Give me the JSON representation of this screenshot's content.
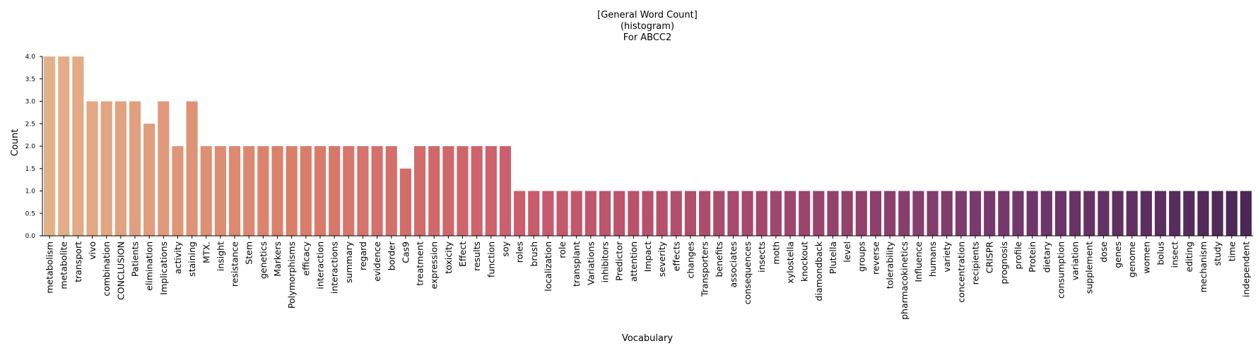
{
  "chart_data": {
    "type": "bar",
    "title": [
      "[General Word Count]",
      "(histogram)",
      "For ABCC2"
    ],
    "xlabel": "Vocabulary",
    "ylabel": "Count",
    "ylim": [
      0,
      4.0
    ],
    "yticks": [
      "0.0",
      "0.5",
      "1.0",
      "1.5",
      "2.0",
      "2.5",
      "3.0",
      "3.5",
      "4.0"
    ],
    "grid": false,
    "palette": "flare",
    "categories": [
      "metabolism",
      "metabolite",
      "transport",
      "vivo",
      "combination",
      "CONCLUSION",
      "Patients",
      "elimination",
      "Implications",
      "activity",
      "staining",
      "MTX.",
      "insight",
      "resistance",
      "Stem",
      "genetics",
      "Markers",
      "Polymorphisms",
      "efficacy",
      "interaction",
      "interactions",
      "summary",
      "regard",
      "evidence",
      "border",
      "Cas9",
      "treatment",
      "expression",
      "toxicity",
      "Effect",
      "results",
      "function",
      "soy",
      "roles",
      "brush",
      "localization",
      "role",
      "transplant",
      "Variations",
      "inhibitors",
      "Predictor",
      "attention",
      "Impact",
      "severity",
      "effects",
      "changes",
      "Transporters",
      "benefits",
      "associates",
      "consequences",
      "insects",
      "moth",
      "xylostella",
      "knockout",
      "diamondback",
      "Plutella",
      "level",
      "groups",
      "reverse",
      "tolerability",
      "pharmacokinetics",
      "Influence",
      "humans",
      "variety",
      "concentration",
      "recipients",
      "CRISPR",
      "prognosis",
      "profile",
      "Protein",
      "dietary",
      "consumption",
      "variation",
      "supplement",
      "dose",
      "genes",
      "genome",
      "women",
      "bolus",
      "insect",
      "editing",
      "mechanism",
      "study",
      "time",
      "independent"
    ],
    "values": [
      4,
      4,
      4,
      3,
      3,
      3,
      3,
      2.5,
      3,
      2,
      3,
      2,
      2,
      2,
      2,
      2,
      2,
      2,
      2,
      2,
      2,
      2,
      2,
      2,
      2,
      1.5,
      2,
      2,
      2,
      2,
      2,
      2,
      2,
      1,
      1,
      1,
      1,
      1,
      1,
      1,
      1,
      1,
      1,
      1,
      1,
      1,
      1,
      1,
      1,
      1,
      1,
      1,
      1,
      1,
      1,
      1,
      1,
      1,
      1,
      1,
      1,
      1,
      1,
      1,
      1,
      1,
      1,
      1,
      1,
      1,
      1,
      1,
      1,
      1,
      1,
      1,
      1,
      1,
      1,
      1,
      1,
      1,
      1,
      1,
      1
    ]
  }
}
